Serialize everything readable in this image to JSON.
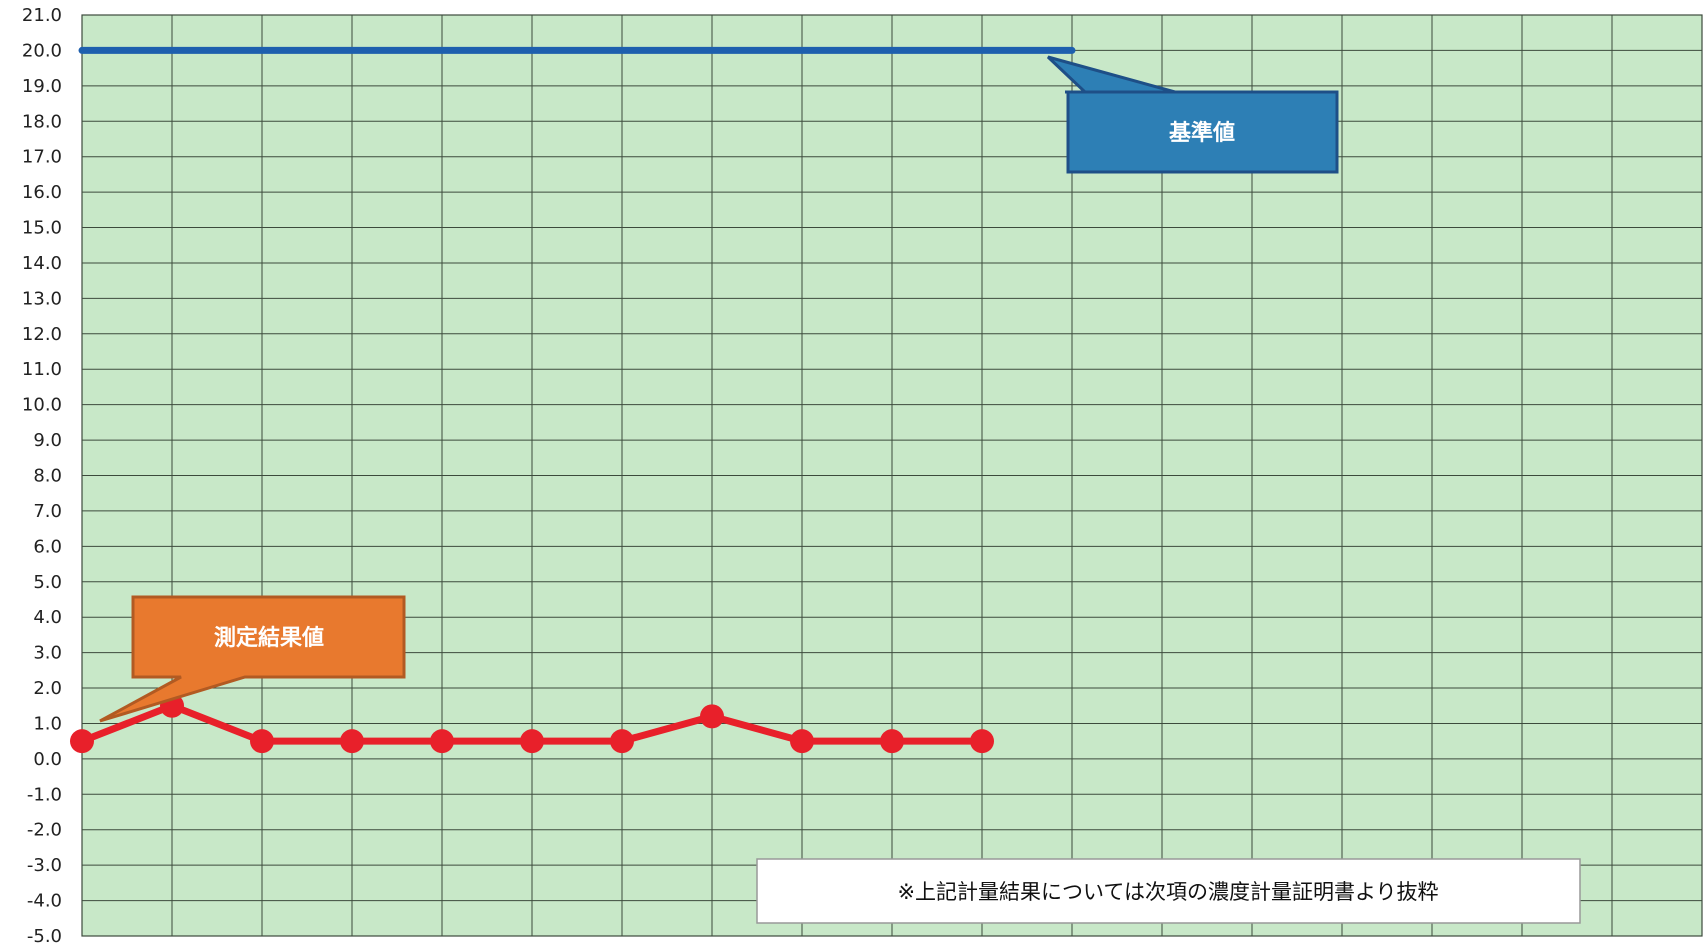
{
  "chart_data": {
    "type": "line",
    "title": "",
    "xlabel": "",
    "ylabel": "",
    "ylim": [
      -5,
      21
    ],
    "y_tick_step": 1,
    "x_categories_count": 18,
    "grid": true,
    "colors": {
      "plot_background": "#c8e8c8",
      "grid_line": "#3c4a3c",
      "measured": "#e8202a",
      "standard": "#1e5fae",
      "standard_callout": "#2d7fb5",
      "standard_callout_border": "#1e4f87",
      "measured_callout": "#e8792e",
      "measured_callout_border": "#b25a22"
    },
    "series": [
      {
        "key": "standard",
        "x": [
          0,
          11
        ],
        "values": [
          20,
          20
        ]
      },
      {
        "key": "measured",
        "x": [
          0,
          1,
          2,
          3,
          4,
          5,
          6,
          7,
          8,
          9,
          10
        ],
        "values": [
          0.5,
          1.5,
          0.5,
          0.5,
          0.5,
          0.5,
          0.5,
          1.2,
          0.5,
          0.5,
          0.5
        ]
      }
    ],
    "annotations": {
      "standard_label": "基準値",
      "measured_label": "測定結果値",
      "note": "※上記計量結果については次項の濃度計量証明書より抜粋"
    }
  }
}
